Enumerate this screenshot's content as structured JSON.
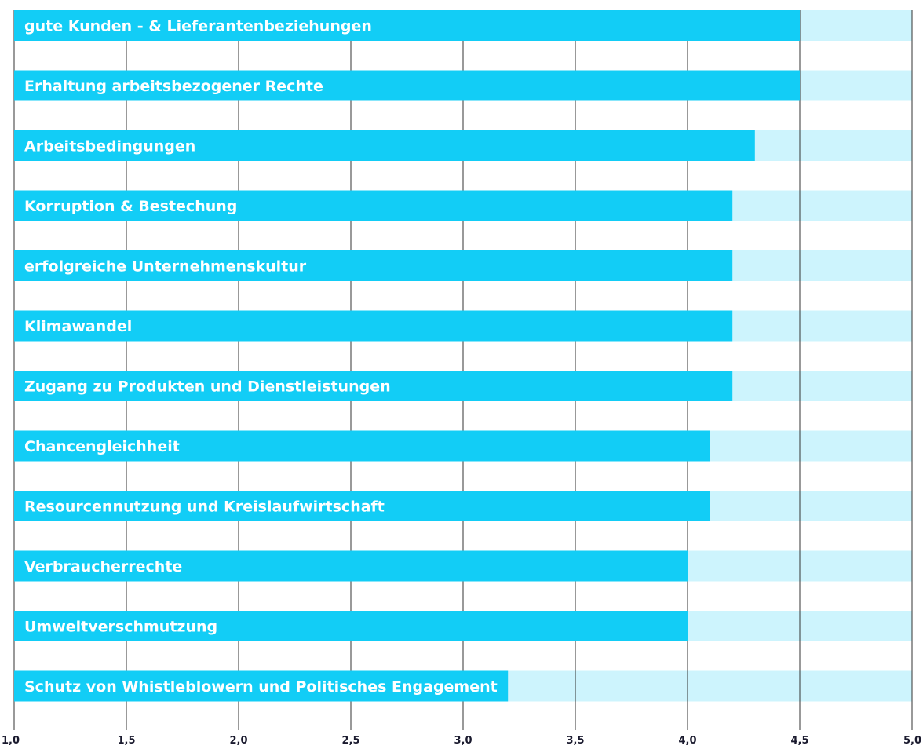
{
  "chart_data": {
    "type": "bar",
    "orientation": "horizontal",
    "title": "",
    "xlabel": "",
    "ylabel": "",
    "xlim": [
      1.0,
      5.0
    ],
    "x_ticks": [
      "1,0",
      "1,5",
      "2,0",
      "2,5",
      "3,0",
      "3,5",
      "4,0",
      "4,5",
      "5,0"
    ],
    "grid": true,
    "categories": [
      "gute Kunden - & Lieferantenbeziehungen",
      "Erhaltung arbeitsbezogener Rechte",
      "Arbeitsbedingungen",
      "Korruption & Bestechung",
      "erfolgreiche Unternehmenskultur",
      "Klimawandel",
      "Zugang zu Produkten und Dienstleistungen",
      "Chancengleichheit",
      "Resourcennutzung und Kreislaufwirtschaft",
      "Verbraucherrechte",
      "Umweltverschmutzung",
      "Schutz von Whistleblowern und Politisches Engagement"
    ],
    "values": [
      4.5,
      4.5,
      4.3,
      4.2,
      4.2,
      4.2,
      4.2,
      4.1,
      4.1,
      4.0,
      4.0,
      3.2
    ],
    "colors": {
      "bar": "#12cdf6",
      "track": "#cdf4fd",
      "grid": "#333333",
      "label": "#ffffff",
      "tick": "#1a1a2e"
    }
  }
}
